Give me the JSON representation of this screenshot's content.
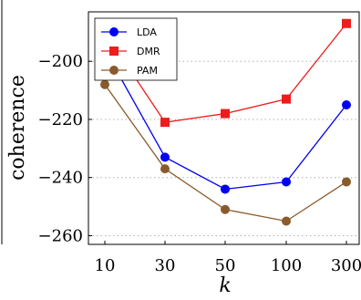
{
  "chart_data": {
    "type": "line",
    "title": "",
    "xlabel": "k",
    "ylabel": "coherence",
    "categories": [
      "10",
      "30",
      "50",
      "100",
      "300"
    ],
    "ylim": [
      -263,
      -183
    ],
    "yticks": [
      -200,
      -220,
      -240,
      -260
    ],
    "ytick_labels": [
      "−200",
      "−220",
      "−240",
      "−260"
    ],
    "grid": "horizontal-dotted",
    "legend": "top-left",
    "series": [
      {
        "name": "LDA",
        "color": "#0000ee",
        "marker": "circle",
        "values": [
          -196,
          -233,
          -244,
          -241.5,
          -215
        ]
      },
      {
        "name": "DMR",
        "color": "#ee1c1c",
        "marker": "square",
        "values": [
          -190,
          -221,
          -218,
          -213,
          -187
        ]
      },
      {
        "name": "PAM",
        "color": "#8b5a2b",
        "marker": "circle",
        "values": [
          -208,
          -237,
          -251,
          -255,
          -241.5
        ]
      }
    ]
  }
}
